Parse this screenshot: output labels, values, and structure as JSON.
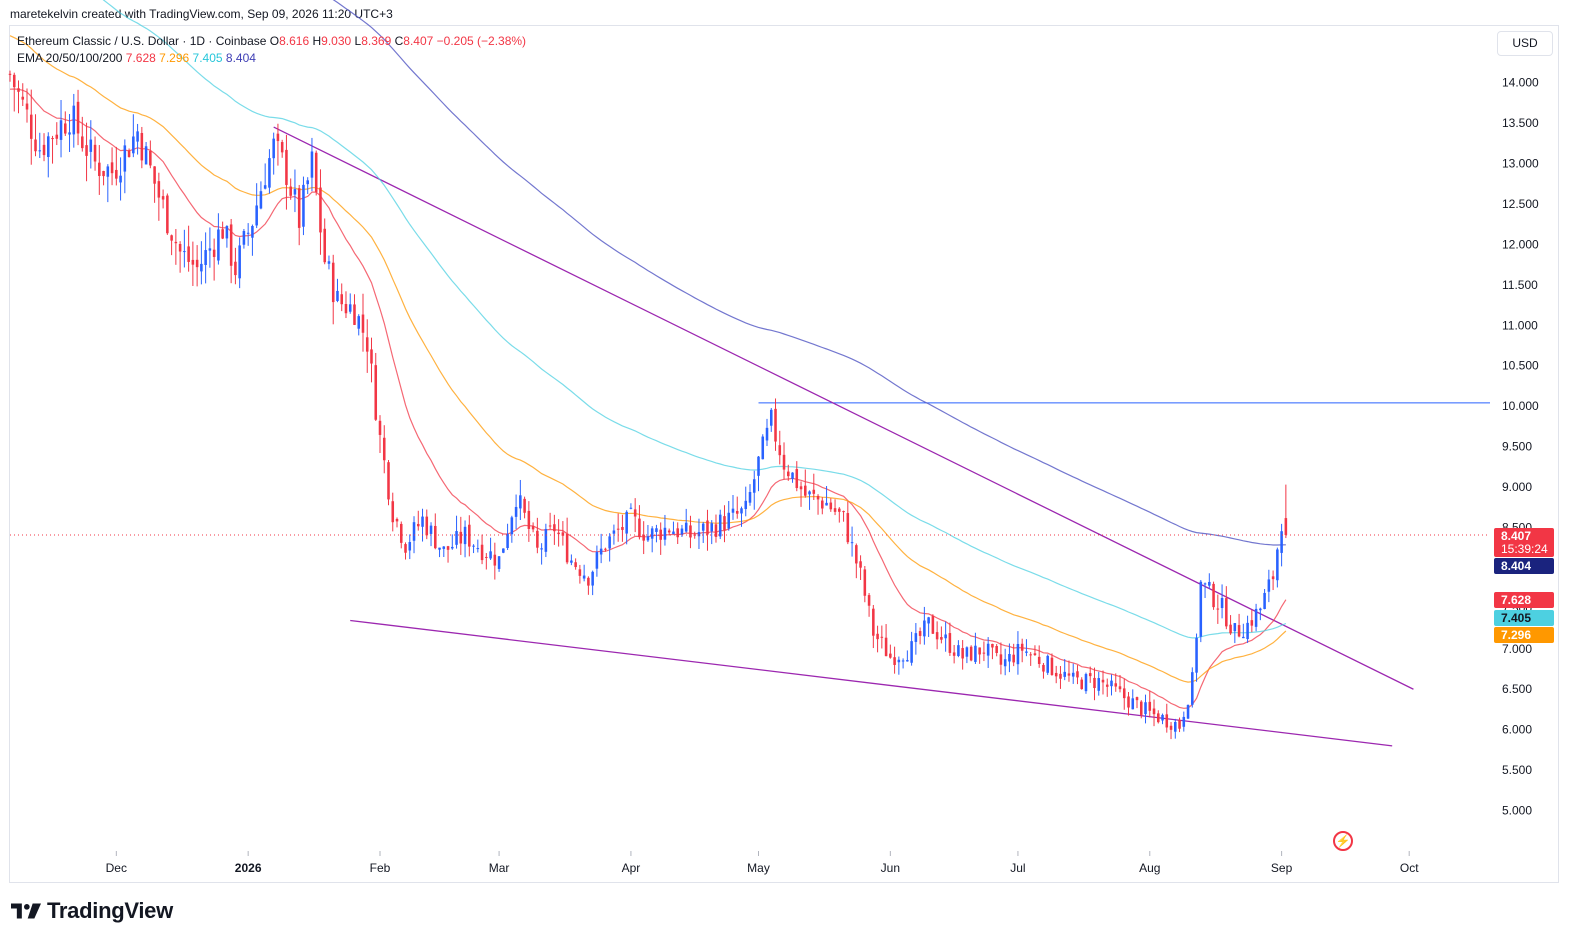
{
  "header": {
    "created_by": "maretekelvin created with TradingView.com, Sep 09, 2026 11:20 UTC+3"
  },
  "legend": {
    "symbol": "Ethereum Classic / U.S. Dollar · 1D · Coinbase",
    "o_key": "O",
    "o": "8.616",
    "h_key": "H",
    "h": "9.030",
    "l_key": "L",
    "l": "8.369",
    "c_key": "C",
    "c": "8.407",
    "change": "−0.205 (−2.38%)",
    "ema_label": "EMA 20/50/100/200",
    "ema20": "7.628",
    "ema50": "7.296",
    "ema100": "7.405",
    "ema200": "8.404"
  },
  "price_scale": {
    "currency": "USD"
  },
  "tags": {
    "last_price": "8.407",
    "countdown": "15:39:24",
    "ema200": "8.404",
    "ema20": "7.628",
    "ema100": "7.405",
    "ema50": "7.296"
  },
  "colors": {
    "up": "#2962ff",
    "down": "#f23645",
    "ema20": "#f23645",
    "ema50": "#ff9800",
    "ema100": "#4dd0e1",
    "ema200": "#5b5fc7",
    "trendline": "#9c27b0",
    "hline": "#2962ff"
  },
  "footer": {
    "brand": "TradingView"
  },
  "chart_data": {
    "type": "candlestick",
    "title": "Ethereum Classic / U.S. Dollar · 1D · Coinbase",
    "y_axis": {
      "ticks": [
        5.0,
        5.5,
        6.0,
        6.5,
        7.0,
        7.5,
        8.0,
        8.5,
        9.0,
        9.5,
        10.0,
        10.5,
        11.0,
        11.5,
        12.0,
        12.5,
        13.0,
        13.5,
        14.0
      ],
      "tick_labels": [
        "5.000",
        "5.500",
        "6.000",
        "6.500",
        "7.000",
        "7.500",
        "8.000",
        "8.500",
        "9.000",
        "9.500",
        "10.000",
        "10.500",
        "11.000",
        "11.500",
        "12.000",
        "12.500",
        "13.000",
        "13.500",
        "14.000"
      ],
      "range": [
        4.5,
        14.7
      ]
    },
    "x_axis": {
      "labels": [
        "Dec",
        "2026",
        "Feb",
        "Mar",
        "Apr",
        "May",
        "Jun",
        "Jul",
        "Aug",
        "Sep",
        "Oct"
      ],
      "label_days": [
        -7,
        24,
        55,
        83,
        114,
        144,
        175,
        205,
        236,
        267,
        297
      ],
      "range": [
        -32,
        316
      ]
    },
    "last_close": 8.407,
    "horizontal_line": {
      "price": 10.04,
      "from_day": 144
    },
    "trendlines": [
      {
        "from": [
          30,
          13.45
        ],
        "to": [
          298,
          6.5
        ]
      },
      {
        "from": [
          48,
          7.35
        ],
        "to": [
          293,
          5.8
        ]
      }
    ],
    "price_anchors": [
      [
        -32,
        14.1
      ],
      [
        -25,
        13.2
      ],
      [
        -18,
        13.6
      ],
      [
        -12,
        13.0
      ],
      [
        -8,
        12.9
      ],
      [
        -2,
        13.4
      ],
      [
        3,
        12.6
      ],
      [
        8,
        11.9
      ],
      [
        12,
        11.7
      ],
      [
        18,
        12.2
      ],
      [
        21,
        11.7
      ],
      [
        25,
        12.3
      ],
      [
        28,
        12.9
      ],
      [
        30,
        13.2
      ],
      [
        33,
        12.9
      ],
      [
        36,
        12.3
      ],
      [
        39,
        13.0
      ],
      [
        42,
        11.8
      ],
      [
        45,
        11.3
      ],
      [
        49,
        11.2
      ],
      [
        52,
        10.8
      ],
      [
        55,
        9.6
      ],
      [
        58,
        8.7
      ],
      [
        61,
        8.3
      ],
      [
        65,
        8.6
      ],
      [
        70,
        8.2
      ],
      [
        75,
        8.4
      ],
      [
        80,
        8.2
      ],
      [
        83,
        8.1
      ],
      [
        87,
        8.9
      ],
      [
        92,
        8.2
      ],
      [
        96,
        8.5
      ],
      [
        100,
        8.1
      ],
      [
        104,
        7.9
      ],
      [
        108,
        8.3
      ],
      [
        114,
        8.6
      ],
      [
        118,
        8.4
      ],
      [
        123,
        8.5
      ],
      [
        128,
        8.4
      ],
      [
        133,
        8.5
      ],
      [
        137,
        8.6
      ],
      [
        141,
        8.7
      ],
      [
        144,
        9.3
      ],
      [
        147,
        9.8
      ],
      [
        150,
        9.3
      ],
      [
        155,
        8.9
      ],
      [
        160,
        8.8
      ],
      [
        164,
        8.6
      ],
      [
        168,
        7.9
      ],
      [
        171,
        7.2
      ],
      [
        175,
        6.9
      ],
      [
        180,
        7.0
      ],
      [
        184,
        7.3
      ],
      [
        188,
        7.1
      ],
      [
        192,
        6.9
      ],
      [
        197,
        7.0
      ],
      [
        201,
        6.8
      ],
      [
        206,
        7.0
      ],
      [
        212,
        6.8
      ],
      [
        218,
        6.6
      ],
      [
        224,
        6.6
      ],
      [
        230,
        6.4
      ],
      [
        236,
        6.2
      ],
      [
        241,
        6.1
      ],
      [
        243,
        6.05
      ],
      [
        246,
        6.6
      ],
      [
        248,
        7.8
      ],
      [
        250,
        7.7
      ],
      [
        253,
        7.5
      ],
      [
        256,
        7.2
      ],
      [
        259,
        7.3
      ],
      [
        262,
        7.5
      ],
      [
        265,
        7.9
      ],
      [
        267,
        8.6
      ],
      [
        268,
        8.407
      ]
    ]
  }
}
